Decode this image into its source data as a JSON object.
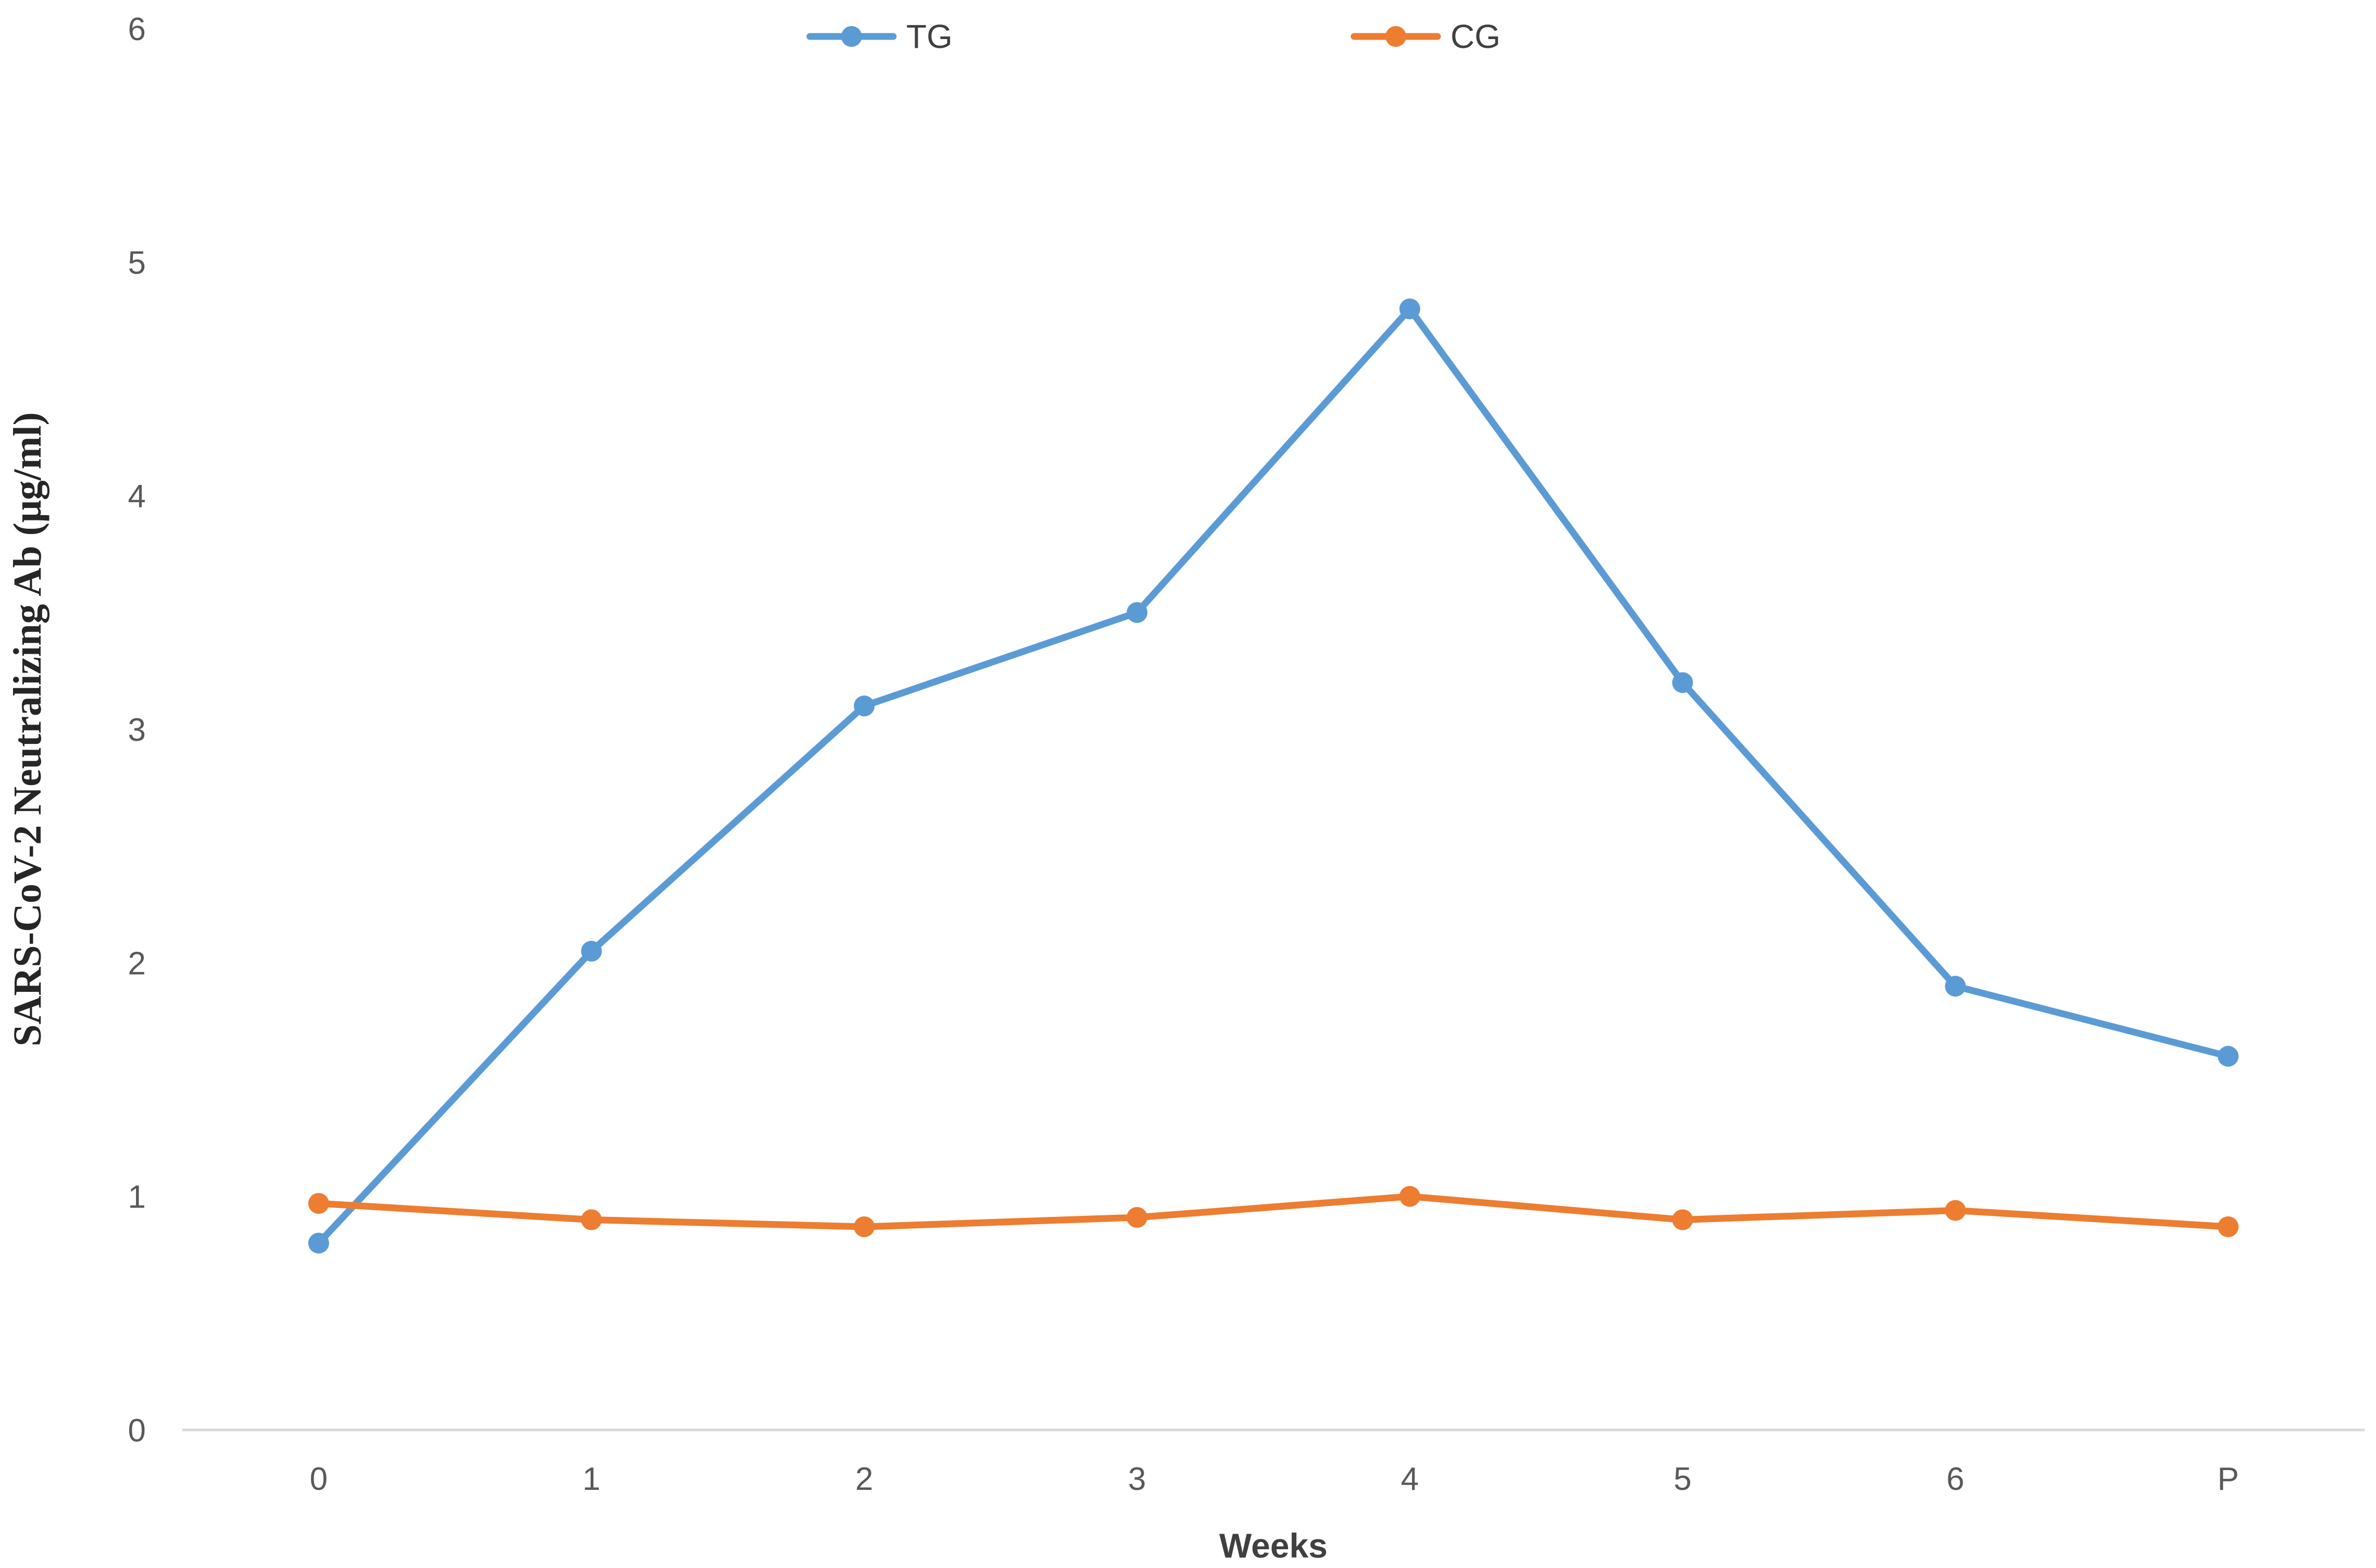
{
  "chart_data": {
    "type": "line",
    "title": "",
    "xlabel": "Weeks",
    "ylabel": "SARS-CoV-2 Neutralizing Ab (μg/ml)",
    "categories": [
      "0",
      "1",
      "2",
      "3",
      "4",
      "5",
      "6",
      "P"
    ],
    "ylim": [
      0,
      6
    ],
    "yticks": [
      "0",
      "1",
      "2",
      "3",
      "4",
      "5",
      "6"
    ],
    "grid": false,
    "legend_position": "top-center",
    "series": [
      {
        "name": "TG",
        "color": "#5B9BD5",
        "values": [
          0.8,
          2.05,
          3.1,
          3.5,
          4.8,
          3.2,
          1.9,
          1.6
        ]
      },
      {
        "name": "CG",
        "color": "#ED7D31",
        "values": [
          0.97,
          0.9,
          0.87,
          0.91,
          1.0,
          0.9,
          0.94,
          0.87
        ]
      }
    ]
  }
}
